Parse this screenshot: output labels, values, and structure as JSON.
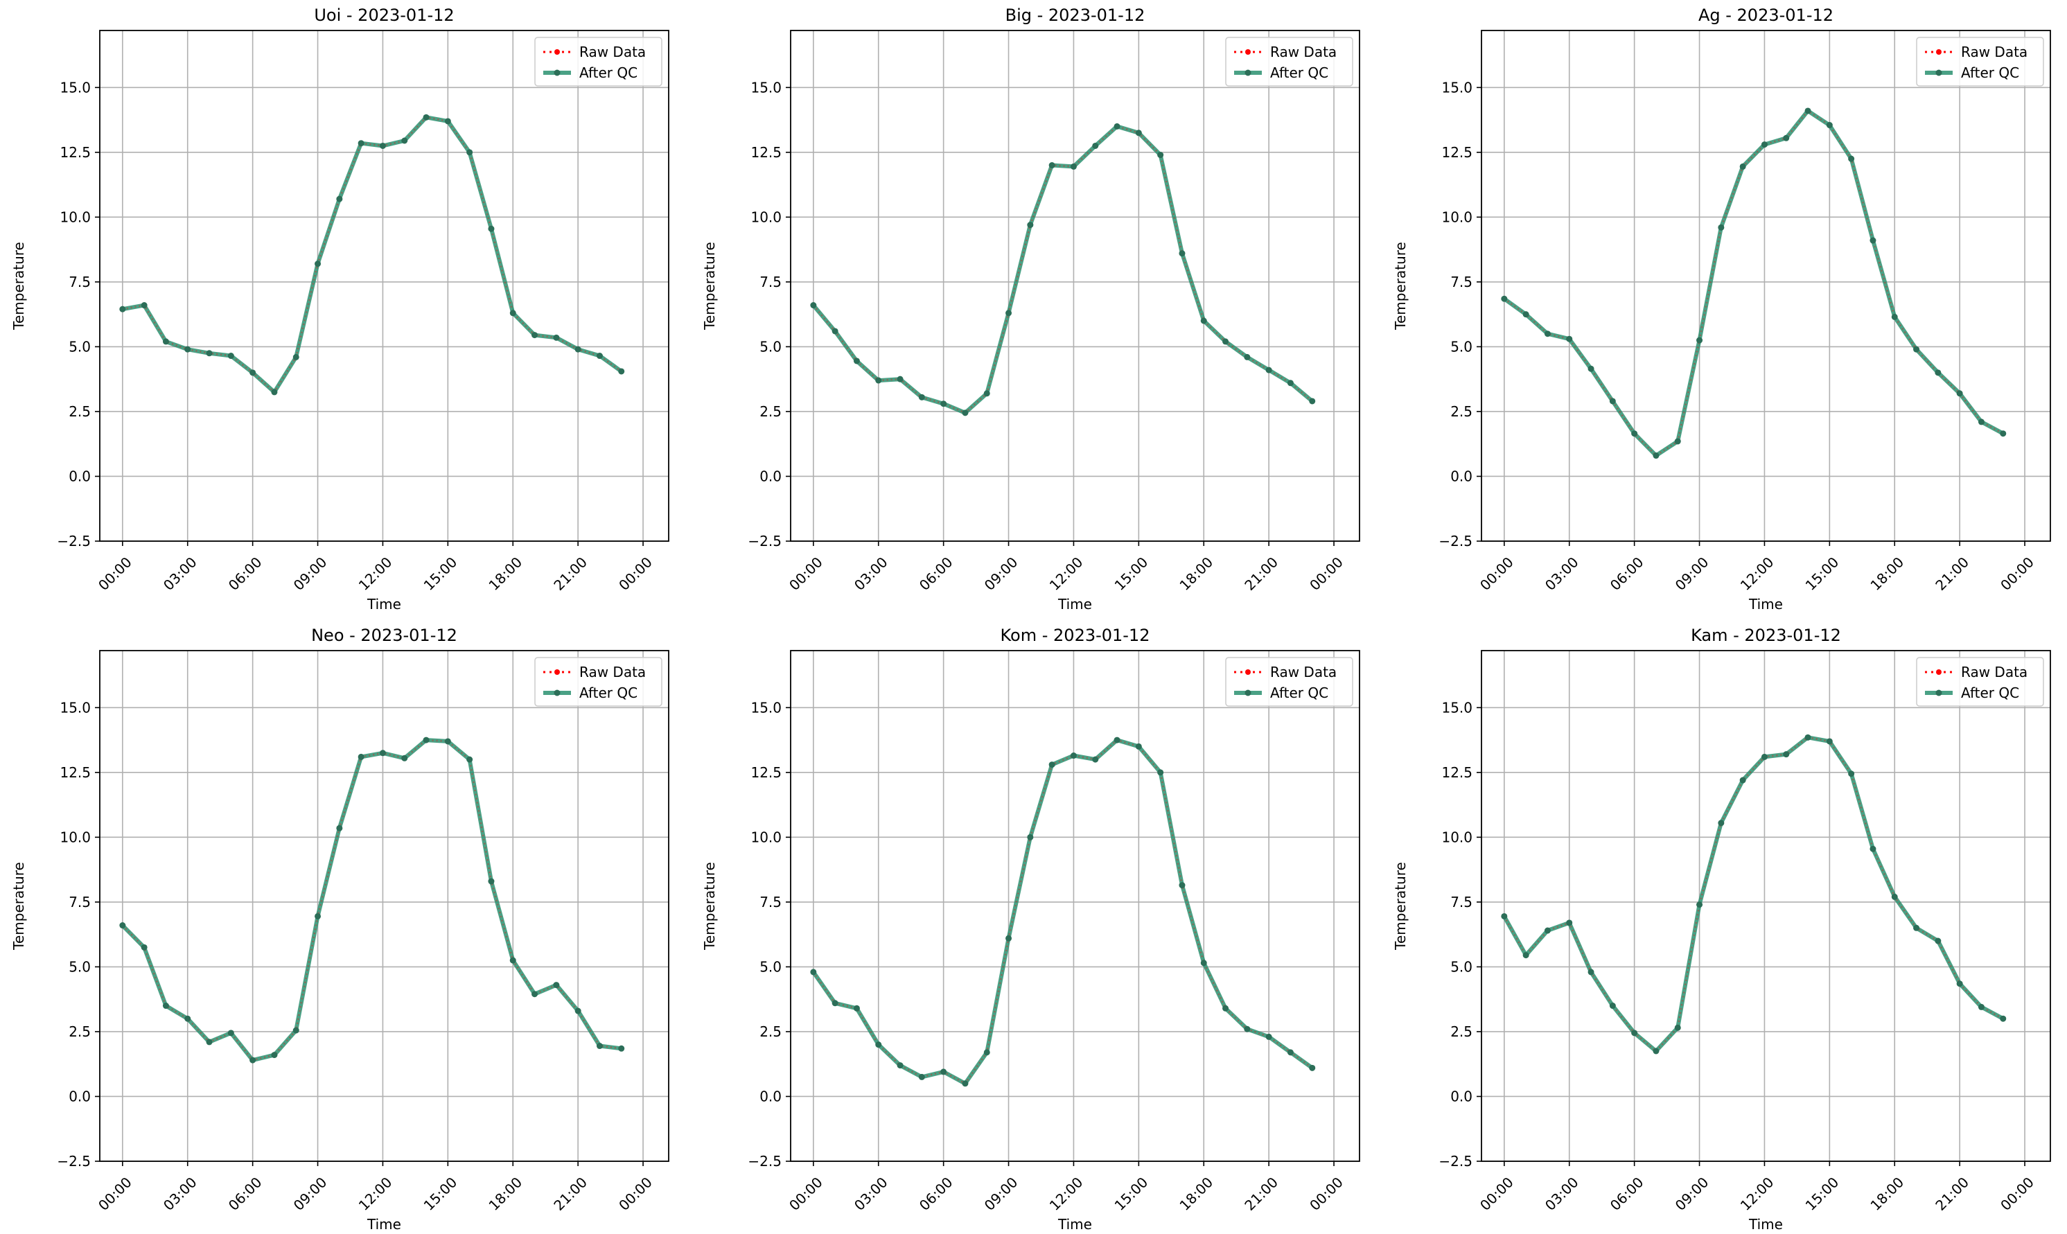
{
  "chart_data": [
    {
      "type": "line",
      "title": "Uoi - 2023-01-12",
      "xlabel": "Time",
      "ylabel": "Temperature",
      "x": [
        "00:00",
        "01:00",
        "02:00",
        "03:00",
        "04:00",
        "05:00",
        "06:00",
        "07:00",
        "08:00",
        "09:00",
        "10:00",
        "11:00",
        "12:00",
        "13:00",
        "14:00",
        "15:00",
        "16:00",
        "17:00",
        "18:00",
        "19:00",
        "20:00",
        "21:00",
        "22:00",
        "23:00"
      ],
      "xticks": [
        "00:00",
        "03:00",
        "06:00",
        "09:00",
        "12:00",
        "15:00",
        "18:00",
        "21:00",
        "00:00"
      ],
      "yticks": [
        "−2.5",
        "0.0",
        "2.5",
        "5.0",
        "7.5",
        "10.0",
        "12.5",
        "15.0"
      ],
      "ylim": [
        -2.5,
        17.2
      ],
      "grid": true,
      "legend_position": "top-right",
      "series": [
        {
          "name": "Raw Data",
          "color": "#ff0000",
          "values": [
            6.45,
            6.6,
            5.2,
            4.9,
            4.75,
            4.65,
            4.0,
            3.25,
            4.6,
            8.2,
            10.7,
            12.85,
            12.75,
            12.95,
            13.85,
            13.7,
            12.5,
            9.55,
            6.3,
            5.45,
            5.35,
            4.9,
            4.65,
            4.05
          ]
        },
        {
          "name": "After QC",
          "color": "#2a9070",
          "values": [
            6.45,
            6.6,
            5.2,
            4.9,
            4.75,
            4.65,
            4.0,
            3.25,
            4.6,
            8.2,
            10.7,
            12.85,
            12.75,
            12.95,
            13.85,
            13.7,
            12.5,
            9.55,
            6.3,
            5.45,
            5.35,
            4.9,
            4.65,
            4.05
          ]
        }
      ]
    },
    {
      "type": "line",
      "title": "Big - 2023-01-12",
      "xlabel": "Time",
      "ylabel": "Temperature",
      "x": [
        "00:00",
        "01:00",
        "02:00",
        "03:00",
        "04:00",
        "05:00",
        "06:00",
        "07:00",
        "08:00",
        "09:00",
        "10:00",
        "11:00",
        "12:00",
        "13:00",
        "14:00",
        "15:00",
        "16:00",
        "17:00",
        "18:00",
        "19:00",
        "20:00",
        "21:00",
        "22:00",
        "23:00"
      ],
      "xticks": [
        "00:00",
        "03:00",
        "06:00",
        "09:00",
        "12:00",
        "15:00",
        "18:00",
        "21:00",
        "00:00"
      ],
      "yticks": [
        "−2.5",
        "0.0",
        "2.5",
        "5.0",
        "7.5",
        "10.0",
        "12.5",
        "15.0"
      ],
      "ylim": [
        -2.5,
        17.2
      ],
      "grid": true,
      "legend_position": "top-right",
      "series": [
        {
          "name": "Raw Data",
          "color": "#ff0000",
          "values": [
            6.6,
            5.6,
            4.45,
            3.7,
            3.75,
            3.05,
            2.8,
            2.45,
            3.2,
            6.3,
            9.7,
            12.0,
            11.95,
            12.75,
            13.5,
            13.25,
            12.4,
            8.6,
            6.0,
            5.2,
            4.6,
            4.1,
            3.6,
            2.9
          ]
        },
        {
          "name": "After QC",
          "color": "#2a9070",
          "values": [
            6.6,
            5.6,
            4.45,
            3.7,
            3.75,
            3.05,
            2.8,
            2.45,
            3.2,
            6.3,
            9.7,
            12.0,
            11.95,
            12.75,
            13.5,
            13.25,
            12.4,
            8.6,
            6.0,
            5.2,
            4.6,
            4.1,
            3.6,
            2.9
          ]
        }
      ]
    },
    {
      "type": "line",
      "title": "Ag - 2023-01-12",
      "xlabel": "Time",
      "ylabel": "Temperature",
      "x": [
        "00:00",
        "01:00",
        "02:00",
        "03:00",
        "04:00",
        "05:00",
        "06:00",
        "07:00",
        "08:00",
        "09:00",
        "10:00",
        "11:00",
        "12:00",
        "13:00",
        "14:00",
        "15:00",
        "16:00",
        "17:00",
        "18:00",
        "19:00",
        "20:00",
        "21:00",
        "22:00",
        "23:00"
      ],
      "xticks": [
        "00:00",
        "03:00",
        "06:00",
        "09:00",
        "12:00",
        "15:00",
        "18:00",
        "21:00",
        "00:00"
      ],
      "yticks": [
        "−2.5",
        "0.0",
        "2.5",
        "5.0",
        "7.5",
        "10.0",
        "12.5",
        "15.0"
      ],
      "ylim": [
        -2.5,
        17.2
      ],
      "grid": true,
      "legend_position": "top-right",
      "series": [
        {
          "name": "Raw Data",
          "color": "#ff0000",
          "values": [
            6.85,
            6.25,
            5.5,
            5.3,
            4.15,
            2.9,
            1.65,
            0.8,
            1.35,
            5.25,
            9.6,
            11.95,
            12.8,
            13.05,
            14.1,
            13.55,
            12.25,
            9.1,
            6.15,
            4.9,
            4.0,
            3.2,
            2.1,
            1.65
          ]
        },
        {
          "name": "After QC",
          "color": "#2a9070",
          "values": [
            6.85,
            6.25,
            5.5,
            5.3,
            4.15,
            2.9,
            1.65,
            0.8,
            1.35,
            5.25,
            9.6,
            11.95,
            12.8,
            13.05,
            14.1,
            13.55,
            12.25,
            9.1,
            6.15,
            4.9,
            4.0,
            3.2,
            2.1,
            1.65
          ]
        }
      ]
    },
    {
      "type": "line",
      "title": "Neo - 2023-01-12",
      "xlabel": "Time",
      "ylabel": "Temperature",
      "x": [
        "00:00",
        "01:00",
        "02:00",
        "03:00",
        "04:00",
        "05:00",
        "06:00",
        "07:00",
        "08:00",
        "09:00",
        "10:00",
        "11:00",
        "12:00",
        "13:00",
        "14:00",
        "15:00",
        "16:00",
        "17:00",
        "18:00",
        "19:00",
        "20:00",
        "21:00",
        "22:00",
        "23:00"
      ],
      "xticks": [
        "00:00",
        "03:00",
        "06:00",
        "09:00",
        "12:00",
        "15:00",
        "18:00",
        "21:00",
        "00:00"
      ],
      "yticks": [
        "−2.5",
        "0.0",
        "2.5",
        "5.0",
        "7.5",
        "10.0",
        "12.5",
        "15.0"
      ],
      "ylim": [
        -2.5,
        17.2
      ],
      "grid": true,
      "legend_position": "top-right",
      "series": [
        {
          "name": "Raw Data",
          "color": "#ff0000",
          "values": [
            6.6,
            5.75,
            3.5,
            3.0,
            2.1,
            2.45,
            1.4,
            1.6,
            2.55,
            6.95,
            10.35,
            13.1,
            13.25,
            13.05,
            13.75,
            13.7,
            13.0,
            8.3,
            5.25,
            3.95,
            4.3,
            3.3,
            1.95,
            1.85
          ]
        },
        {
          "name": "After QC",
          "color": "#2a9070",
          "values": [
            6.6,
            5.75,
            3.5,
            3.0,
            2.1,
            2.45,
            1.4,
            1.6,
            2.55,
            6.95,
            10.35,
            13.1,
            13.25,
            13.05,
            13.75,
            13.7,
            13.0,
            8.3,
            5.25,
            3.95,
            4.3,
            3.3,
            1.95,
            1.85
          ]
        }
      ]
    },
    {
      "type": "line",
      "title": "Kom - 2023-01-12",
      "xlabel": "Time",
      "ylabel": "Temperature",
      "x": [
        "00:00",
        "01:00",
        "02:00",
        "03:00",
        "04:00",
        "05:00",
        "06:00",
        "07:00",
        "08:00",
        "09:00",
        "10:00",
        "11:00",
        "12:00",
        "13:00",
        "14:00",
        "15:00",
        "16:00",
        "17:00",
        "18:00",
        "19:00",
        "20:00",
        "21:00",
        "22:00",
        "23:00"
      ],
      "xticks": [
        "00:00",
        "03:00",
        "06:00",
        "09:00",
        "12:00",
        "15:00",
        "18:00",
        "21:00",
        "00:00"
      ],
      "yticks": [
        "−2.5",
        "0.0",
        "2.5",
        "5.0",
        "7.5",
        "10.0",
        "12.5",
        "15.0"
      ],
      "ylim": [
        -2.5,
        17.2
      ],
      "grid": true,
      "legend_position": "top-right",
      "series": [
        {
          "name": "Raw Data",
          "color": "#ff0000",
          "values": [
            4.8,
            3.6,
            3.4,
            2.0,
            1.2,
            0.75,
            0.95,
            0.5,
            1.7,
            6.1,
            10.0,
            12.8,
            13.15,
            13.0,
            13.75,
            13.5,
            12.5,
            8.15,
            5.15,
            3.4,
            2.6,
            2.3,
            1.7,
            1.1
          ]
        },
        {
          "name": "After QC",
          "color": "#2a9070",
          "values": [
            4.8,
            3.6,
            3.4,
            2.0,
            1.2,
            0.75,
            0.95,
            0.5,
            1.7,
            6.1,
            10.0,
            12.8,
            13.15,
            13.0,
            13.75,
            13.5,
            12.5,
            8.15,
            5.15,
            3.4,
            2.6,
            2.3,
            1.7,
            1.1
          ]
        }
      ]
    },
    {
      "type": "line",
      "title": "Kam - 2023-01-12",
      "xlabel": "Time",
      "ylabel": "Temperature",
      "x": [
        "00:00",
        "01:00",
        "02:00",
        "03:00",
        "04:00",
        "05:00",
        "06:00",
        "07:00",
        "08:00",
        "09:00",
        "10:00",
        "11:00",
        "12:00",
        "13:00",
        "14:00",
        "15:00",
        "16:00",
        "17:00",
        "18:00",
        "19:00",
        "20:00",
        "21:00",
        "22:00",
        "23:00"
      ],
      "xticks": [
        "00:00",
        "03:00",
        "06:00",
        "09:00",
        "12:00",
        "15:00",
        "18:00",
        "21:00",
        "00:00"
      ],
      "yticks": [
        "−2.5",
        "0.0",
        "2.5",
        "5.0",
        "7.5",
        "10.0",
        "12.5",
        "15.0"
      ],
      "ylim": [
        -2.5,
        17.2
      ],
      "grid": true,
      "legend_position": "top-right",
      "series": [
        {
          "name": "Raw Data",
          "color": "#ff0000",
          "values": [
            6.95,
            5.45,
            6.4,
            6.7,
            4.8,
            3.5,
            2.45,
            1.75,
            2.65,
            7.4,
            10.55,
            12.2,
            13.1,
            13.2,
            13.85,
            13.7,
            12.45,
            9.55,
            7.7,
            6.5,
            6.0,
            4.35,
            3.45,
            3.0
          ]
        },
        {
          "name": "After QC",
          "color": "#2a9070",
          "values": [
            6.95,
            5.45,
            6.4,
            6.7,
            4.8,
            3.5,
            2.45,
            1.75,
            2.65,
            7.4,
            10.55,
            12.2,
            13.1,
            13.2,
            13.85,
            13.7,
            12.45,
            9.55,
            7.7,
            6.5,
            6.0,
            4.35,
            3.45,
            3.0
          ]
        }
      ]
    }
  ]
}
